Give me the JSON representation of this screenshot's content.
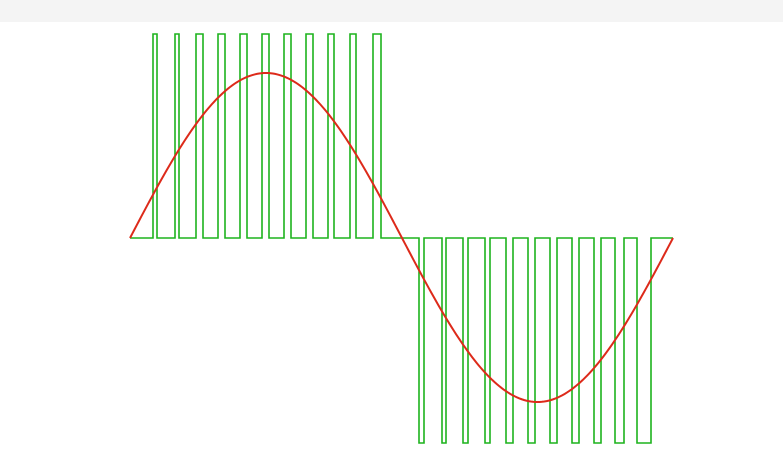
{
  "diagram": {
    "type": "pwm-waveform",
    "colors": {
      "pulse_train": "#1db31d",
      "sine_reference": "#dd2a1a",
      "background": "#ffffff",
      "top_strip": "#f4f4f4"
    },
    "pulse_train": {
      "positive_half_pulses": 11,
      "negative_half_pulses": 11,
      "levels": [
        1,
        0,
        -1
      ]
    },
    "sine_reference": {
      "cycles": 1,
      "amplitude_fraction_of_pulse_height": 0.83
    }
  }
}
